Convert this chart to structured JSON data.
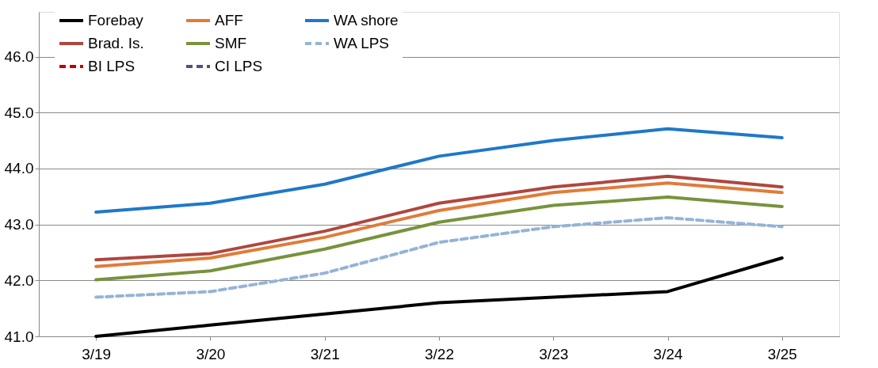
{
  "chart_data": {
    "type": "line",
    "categories": [
      "3/19",
      "3/20",
      "3/21",
      "3/22",
      "3/23",
      "3/24",
      "3/25"
    ],
    "ylim": [
      41,
      46.8
    ],
    "yticks": [
      {
        "value": 41,
        "label": "41.0"
      },
      {
        "value": 42,
        "label": "42.0"
      },
      {
        "value": 43,
        "label": "43.0"
      },
      {
        "value": 44,
        "label": "44.0"
      },
      {
        "value": 45,
        "label": "45.0"
      },
      {
        "value": 46,
        "label": "46.0"
      }
    ],
    "grid": "y",
    "legend": "top left",
    "marker": "none",
    "series": [
      {
        "name": "Forebay",
        "color": "#000000",
        "line_style": "solid",
        "values": [
          41.0,
          41.2,
          41.4,
          41.6,
          41.7,
          41.8,
          42.4
        ]
      },
      {
        "name": "AFF",
        "color": "#e07b39",
        "line_style": "solid",
        "values": [
          42.25,
          42.4,
          42.77,
          43.25,
          43.57,
          43.74,
          43.57
        ]
      },
      {
        "name": "WA shore",
        "color": "#1f78c8",
        "line_style": "solid",
        "values": [
          43.22,
          43.38,
          43.72,
          44.22,
          44.5,
          44.71,
          44.55
        ]
      },
      {
        "name": "Brad. Is.",
        "color": "#b0463f",
        "line_style": "solid",
        "values": [
          42.37,
          42.48,
          42.88,
          43.38,
          43.67,
          43.86,
          43.67
        ]
      },
      {
        "name": "SMF",
        "color": "#77933c",
        "line_style": "solid",
        "values": [
          42.01,
          42.17,
          42.56,
          43.04,
          43.34,
          43.49,
          43.32
        ]
      },
      {
        "name": "WA LPS",
        "color": "#95b3d7",
        "line_style": "dashed",
        "values": [
          41.7,
          41.8,
          42.13,
          42.68,
          42.96,
          43.12,
          42.96
        ]
      },
      {
        "name": "BI LPS",
        "color": "#c00000",
        "line_style": "dashed",
        "values": [
          null,
          null,
          null,
          null,
          null,
          null,
          null
        ]
      },
      {
        "name": "CI LPS",
        "color": "#604a7b",
        "line_style": "dashed",
        "values": [
          null,
          null,
          null,
          null,
          null,
          null,
          null
        ]
      }
    ]
  }
}
